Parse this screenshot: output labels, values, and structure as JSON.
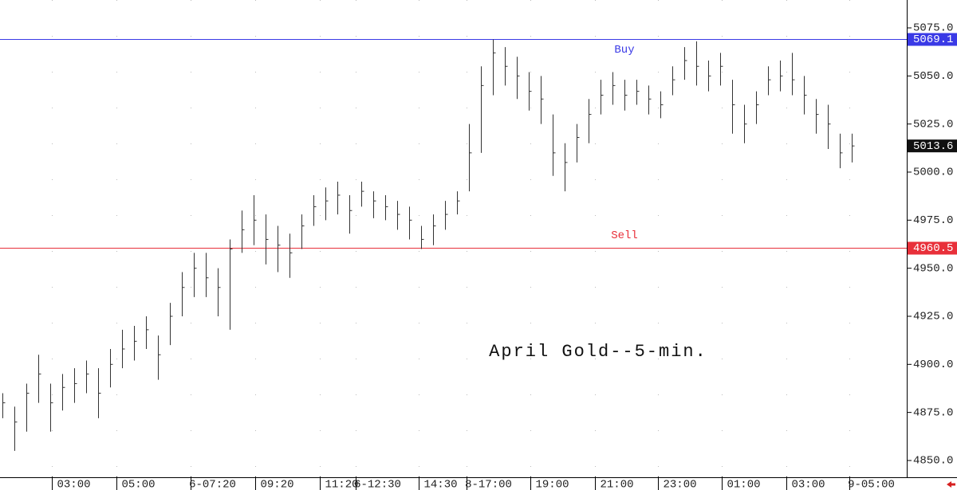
{
  "chart_data": {
    "type": "ohlc",
    "title": "April Gold--5-min.",
    "x": [
      0,
      1,
      2,
      3,
      4,
      5,
      6,
      7,
      8,
      9,
      10,
      11,
      12,
      13,
      14,
      15,
      16,
      17,
      18,
      19,
      20,
      21,
      22,
      23,
      24,
      25,
      26,
      27,
      28,
      29,
      30,
      31,
      32,
      33,
      34,
      35,
      36,
      37,
      38,
      39,
      40,
      41,
      42,
      43,
      44,
      45,
      46,
      47,
      48,
      49,
      50,
      51,
      52,
      53,
      54,
      55,
      56,
      57,
      58,
      59,
      60,
      61,
      62,
      63,
      64,
      65,
      66,
      67,
      68,
      69,
      70,
      71
    ],
    "high": [
      4885,
      4878,
      4890,
      4905,
      4890,
      4895,
      4898,
      4902,
      4898,
      4908,
      4918,
      4920,
      4925,
      4915,
      4932,
      4948,
      4958,
      4958,
      4950,
      4965,
      4980,
      4988,
      4978,
      4972,
      4968,
      4978,
      4988,
      4992,
      4995,
      4988,
      4995,
      4990,
      4988,
      4985,
      4982,
      4972,
      4978,
      4985,
      4990,
      5025,
      5055,
      5069,
      5065,
      5060,
      5052,
      5050,
      5030,
      5015,
      5025,
      5038,
      5048,
      5052,
      5048,
      5048,
      5045,
      5042,
      5055,
      5065,
      5068,
      5058,
      5062,
      5048,
      5035,
      5042,
      5055,
      5058,
      5062,
      5050,
      5038,
      5035,
      5020,
      5020
    ],
    "low": [
      4872,
      4855,
      4865,
      4880,
      4865,
      4876,
      4880,
      4885,
      4872,
      4888,
      4898,
      4902,
      4908,
      4892,
      4910,
      4925,
      4935,
      4935,
      4925,
      4918,
      4958,
      4962,
      4952,
      4948,
      4945,
      4960,
      4972,
      4975,
      4978,
      4968,
      4982,
      4976,
      4975,
      4970,
      4965,
      4960,
      4962,
      4970,
      4978,
      4990,
      5010,
      5040,
      5045,
      5038,
      5032,
      5025,
      4998,
      4990,
      5005,
      5015,
      5030,
      5035,
      5032,
      5035,
      5030,
      5028,
      5040,
      5048,
      5045,
      5042,
      5045,
      5020,
      5015,
      5025,
      5040,
      5042,
      5040,
      5030,
      5020,
      5012,
      5002,
      5005
    ],
    "close": [
      4880,
      4870,
      4885,
      4895,
      4880,
      4888,
      4890,
      4895,
      4885,
      4900,
      4908,
      4912,
      4918,
      4905,
      4925,
      4940,
      4950,
      4945,
      4940,
      4960,
      4970,
      4975,
      4965,
      4962,
      4958,
      4972,
      4982,
      4985,
      4988,
      4980,
      4990,
      4985,
      4982,
      4978,
      4975,
      4965,
      4972,
      4978,
      4985,
      5010,
      5045,
      5062,
      5055,
      5050,
      5042,
      5038,
      5010,
      5005,
      5018,
      5030,
      5040,
      5045,
      5040,
      5042,
      5038,
      5035,
      5048,
      5058,
      5055,
      5050,
      5055,
      5035,
      5025,
      5035,
      5048,
      5050,
      5048,
      5040,
      5030,
      5025,
      5010,
      5013.6
    ],
    "color": "#333333",
    "xlim": [
      -0.2,
      75.6
    ],
    "ylim": [
      4841.7,
      5089.5
    ],
    "grid": true,
    "yticks": [
      {
        "value": 4850,
        "label": "4850.0"
      },
      {
        "value": 4875,
        "label": "4875.0"
      },
      {
        "value": 4900,
        "label": "4900.0"
      },
      {
        "value": 4925,
        "label": "4925.0"
      },
      {
        "value": 4950,
        "label": "4950.0"
      },
      {
        "value": 4975,
        "label": "4975.0"
      },
      {
        "value": 5000,
        "label": "5000.0"
      },
      {
        "value": 5025,
        "label": "5025.0"
      },
      {
        "value": 5050,
        "label": "5050.0"
      },
      {
        "value": 5075,
        "label": "5075.0"
      }
    ],
    "xticks": [
      {
        "value": 4.1,
        "label": "03:00"
      },
      {
        "value": 9.5,
        "label": "05:00"
      },
      {
        "value": 15.7,
        "label": "6-07:20"
      },
      {
        "value": 21.1,
        "label": "09:20"
      },
      {
        "value": 26.5,
        "label": "11:20"
      },
      {
        "value": 29.5,
        "label": "6-12:30"
      },
      {
        "value": 34.8,
        "label": "14:30"
      },
      {
        "value": 38.8,
        "label": "8-17:00"
      },
      {
        "value": 44.1,
        "label": "19:00"
      },
      {
        "value": 49.5,
        "label": "21:00"
      },
      {
        "value": 54.8,
        "label": "23:00"
      },
      {
        "value": 60.1,
        "label": "01:00"
      },
      {
        "value": 65.5,
        "label": "03:00"
      },
      {
        "value": 70.8,
        "label": "9-05:00"
      }
    ],
    "hlines": [
      {
        "label": "Buy",
        "value": 5069.1,
        "color": "#3a3ae6"
      },
      {
        "label": "Sell",
        "value": 4960.5,
        "color": "#e8303a"
      }
    ]
  }
}
